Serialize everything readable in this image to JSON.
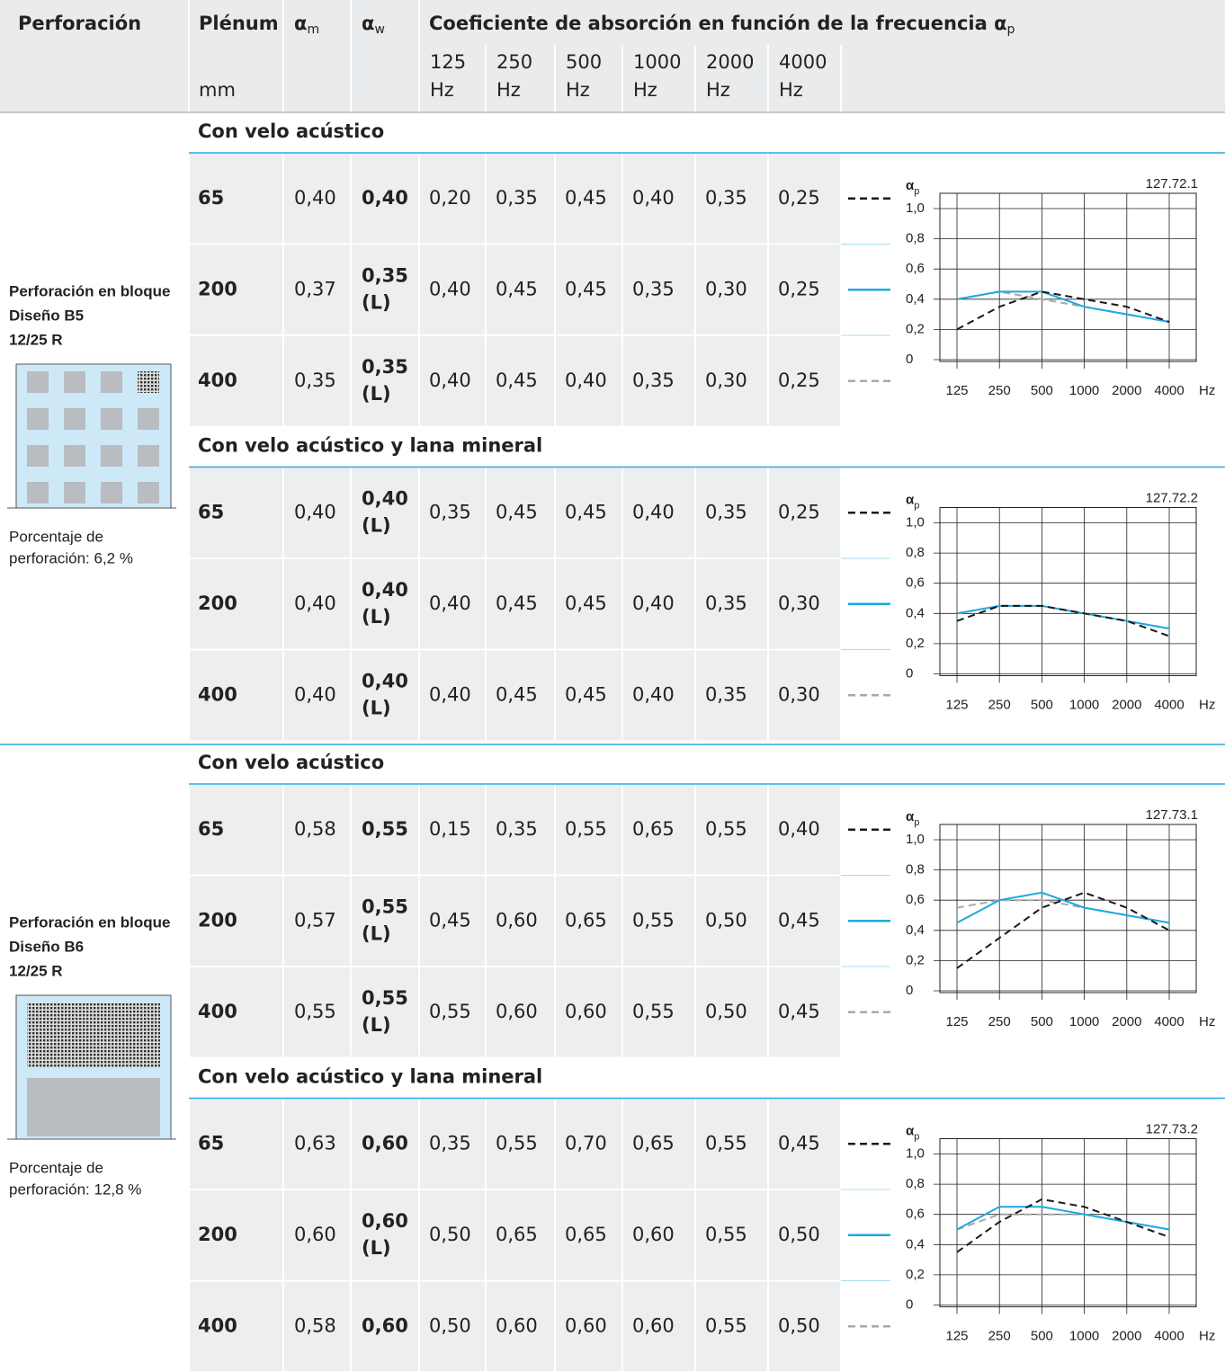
{
  "header": {
    "perforacion": "Perforación",
    "plenum": "Plénum",
    "plenum_unit": "mm",
    "alpha": "α",
    "m": "m",
    "w": "w",
    "coef": "Coeficiente de absorción en función de la frecuencia α",
    "coef_sub": "p",
    "freqs": [
      {
        "value": "125",
        "unit": "Hz"
      },
      {
        "value": "250",
        "unit": "Hz"
      },
      {
        "value": "500",
        "unit": "Hz"
      },
      {
        "value": "1000",
        "unit": "Hz"
      },
      {
        "value": "2000",
        "unit": "Hz"
      },
      {
        "value": "4000",
        "unit": "Hz"
      }
    ]
  },
  "chart": {
    "ylabel": "α",
    "ylabel_sub": "p",
    "ylim": [
      0,
      1
    ],
    "yticks": [
      0,
      {
        "value": 0.2,
        "label": "0,2"
      },
      {
        "value": 0.4,
        "label": "0,4"
      },
      {
        "value": 0.6,
        "label": "0,6"
      },
      {
        "value": 0.8,
        "label": "0,8"
      },
      {
        "value": 1,
        "label": "1,0"
      }
    ],
    "categories": [
      "125",
      "250",
      "500",
      "1000",
      "2000",
      "4000"
    ],
    "xunit": "Hz",
    "series_styles": [
      {
        "color": "#1a1a1a",
        "dash": "8 5"
      },
      {
        "color": "#1ea8df",
        "dash": null
      },
      {
        "color": "#a8a8a8",
        "dash": "8 5"
      }
    ]
  },
  "blocks": [
    {
      "title_lines": [
        "Perforación en bloque",
        "Diseño B5",
        "12/25 R"
      ],
      "percent_lines": [
        "Porcentaje de",
        "perforación: 6,2 %"
      ],
      "groups": [
        {
          "title": "Con velo acústico",
          "code": "127.72.1",
          "rows": [
            {
              "plenum": "65",
              "am": "0,40",
              "aw": "0,40",
              "values": [
                0.2,
                0.35,
                0.45,
                0.4,
                0.35,
                0.25
              ],
              "value_labels": [
                "0,20",
                "0,35",
                "0,45",
                "0,40",
                "0,35",
                "0,25"
              ]
            },
            {
              "plenum": "200",
              "am": "0,37",
              "aw": "0,35",
              "aw_note": "(L)",
              "values": [
                0.4,
                0.45,
                0.45,
                0.35,
                0.3,
                0.25
              ],
              "value_labels": [
                "0,40",
                "0,45",
                "0,45",
                "0,35",
                "0,30",
                "0,25"
              ]
            },
            {
              "plenum": "400",
              "am": "0,35",
              "aw": "0,35",
              "aw_note": "(L)",
              "values": [
                0.4,
                0.45,
                0.4,
                0.35,
                0.3,
                0.25
              ],
              "value_labels": [
                "0,40",
                "0,45",
                "0,40",
                "0,35",
                "0,30",
                "0,25"
              ]
            }
          ]
        },
        {
          "title": "Con velo acústico y lana mineral",
          "code": "127.72.2",
          "rows": [
            {
              "plenum": "65",
              "am": "0,40",
              "aw": "0,40",
              "aw_note": "(L)",
              "values": [
                0.35,
                0.45,
                0.45,
                0.4,
                0.35,
                0.25
              ],
              "value_labels": [
                "0,35",
                "0,45",
                "0,45",
                "0,40",
                "0,35",
                "0,25"
              ]
            },
            {
              "plenum": "200",
              "am": "0,40",
              "aw": "0,40",
              "aw_note": "(L)",
              "values": [
                0.4,
                0.45,
                0.45,
                0.4,
                0.35,
                0.3
              ],
              "value_labels": [
                "0,40",
                "0,45",
                "0,45",
                "0,40",
                "0,35",
                "0,30"
              ]
            },
            {
              "plenum": "400",
              "am": "0,40",
              "aw": "0,40",
              "aw_note": "(L)",
              "values": [
                0.4,
                0.45,
                0.45,
                0.4,
                0.35,
                0.3
              ],
              "value_labels": [
                "0,40",
                "0,45",
                "0,45",
                "0,40",
                "0,35",
                "0,30"
              ]
            }
          ]
        }
      ]
    },
    {
      "title_lines": [
        "Perforación en bloque",
        "Diseño B6",
        "12/25 R"
      ],
      "percent_lines": [
        "Porcentaje de",
        "perforación: 12,8 %"
      ],
      "groups": [
        {
          "title": "Con velo acústico",
          "code": "127.73.1",
          "rows": [
            {
              "plenum": "65",
              "am": "0,58",
              "aw": "0,55",
              "values": [
                0.15,
                0.35,
                0.55,
                0.65,
                0.55,
                0.4
              ],
              "value_labels": [
                "0,15",
                "0,35",
                "0,55",
                "0,65",
                "0,55",
                "0,40"
              ]
            },
            {
              "plenum": "200",
              "am": "0,57",
              "aw": "0,55",
              "aw_note": "(L)",
              "values": [
                0.45,
                0.6,
                0.65,
                0.55,
                0.5,
                0.45
              ],
              "value_labels": [
                "0,45",
                "0,60",
                "0,65",
                "0,55",
                "0,50",
                "0,45"
              ]
            },
            {
              "plenum": "400",
              "am": "0,55",
              "aw": "0,55",
              "aw_note": "(L)",
              "values": [
                0.55,
                0.6,
                0.6,
                0.55,
                0.5,
                0.45
              ],
              "value_labels": [
                "0,55",
                "0,60",
                "0,60",
                "0,55",
                "0,50",
                "0,45"
              ]
            }
          ]
        },
        {
          "title": "Con velo acústico y lana mineral",
          "code": "127.73.2",
          "rows": [
            {
              "plenum": "65",
              "am": "0,63",
              "aw": "0,60",
              "values": [
                0.35,
                0.55,
                0.7,
                0.65,
                0.55,
                0.45
              ],
              "value_labels": [
                "0,35",
                "0,55",
                "0,70",
                "0,65",
                "0,55",
                "0,45"
              ]
            },
            {
              "plenum": "200",
              "am": "0,60",
              "aw": "0,60",
              "aw_note": "(L)",
              "values": [
                0.5,
                0.65,
                0.65,
                0.6,
                0.55,
                0.5
              ],
              "value_labels": [
                "0,50",
                "0,65",
                "0,65",
                "0,60",
                "0,55",
                "0,50"
              ]
            },
            {
              "plenum": "400",
              "am": "0,58",
              "aw": "0,60",
              "values": [
                0.5,
                0.6,
                0.6,
                0.6,
                0.55,
                0.5
              ],
              "value_labels": [
                "0,50",
                "0,60",
                "0,60",
                "0,60",
                "0,55",
                "0,50"
              ]
            }
          ]
        }
      ]
    }
  ]
}
